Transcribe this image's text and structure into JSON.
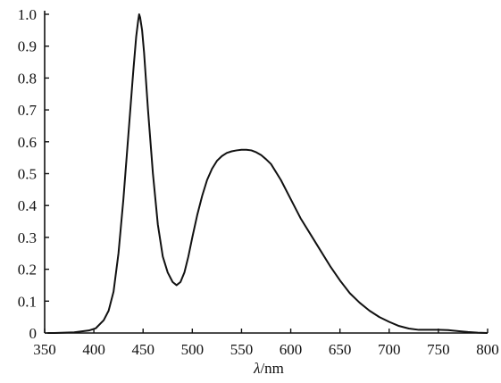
{
  "chart_data": {
    "type": "line",
    "title": "",
    "xlabel_symbol": "λ",
    "xlabel_unit": "/nm",
    "ylabel": "",
    "xlim": [
      350,
      800
    ],
    "ylim": [
      0,
      1.0
    ],
    "xticks": [
      350,
      400,
      450,
      500,
      550,
      600,
      650,
      700,
      750,
      800
    ],
    "xtick_labels": [
      "350",
      "400",
      "450",
      "500",
      "550",
      "600",
      "650",
      "700",
      "750",
      "800"
    ],
    "yticks": [
      0,
      0.1,
      0.2,
      0.3,
      0.4,
      0.5,
      0.6,
      0.7,
      0.8,
      0.9,
      1.0
    ],
    "ytick_labels": [
      "0",
      "0.1",
      "0.2",
      "0.3",
      "0.4",
      "0.5",
      "0.6",
      "0.7",
      "0.8",
      "0.9",
      "1.0"
    ],
    "grid": false,
    "legend": "none",
    "series": [
      {
        "color": "#111111",
        "x": [
          353,
          360,
          380,
          395,
          402,
          410,
          415,
          420,
          425,
          430,
          435,
          440,
          443,
          445,
          446,
          447,
          449,
          451,
          455,
          460,
          465,
          470,
          475,
          480,
          484,
          488,
          492,
          496,
          500,
          505,
          510,
          515,
          520,
          525,
          530,
          535,
          540,
          545,
          550,
          555,
          560,
          565,
          570,
          575,
          580,
          590,
          600,
          610,
          620,
          630,
          640,
          650,
          660,
          670,
          680,
          690,
          700,
          710,
          720,
          730,
          740,
          750,
          760,
          770,
          780,
          790,
          800
        ],
        "y": [
          0,
          0,
          0.002,
          0.008,
          0.015,
          0.04,
          0.07,
          0.13,
          0.25,
          0.42,
          0.62,
          0.82,
          0.93,
          0.98,
          1.0,
          0.99,
          0.95,
          0.88,
          0.7,
          0.5,
          0.34,
          0.24,
          0.19,
          0.16,
          0.15,
          0.16,
          0.19,
          0.24,
          0.3,
          0.37,
          0.43,
          0.48,
          0.515,
          0.54,
          0.555,
          0.565,
          0.57,
          0.573,
          0.575,
          0.575,
          0.573,
          0.567,
          0.558,
          0.545,
          0.53,
          0.48,
          0.42,
          0.36,
          0.31,
          0.26,
          0.21,
          0.165,
          0.125,
          0.095,
          0.07,
          0.05,
          0.035,
          0.022,
          0.014,
          0.01,
          0.01,
          0.01,
          0.009,
          0.006,
          0.003,
          0.001,
          0
        ]
      }
    ]
  }
}
